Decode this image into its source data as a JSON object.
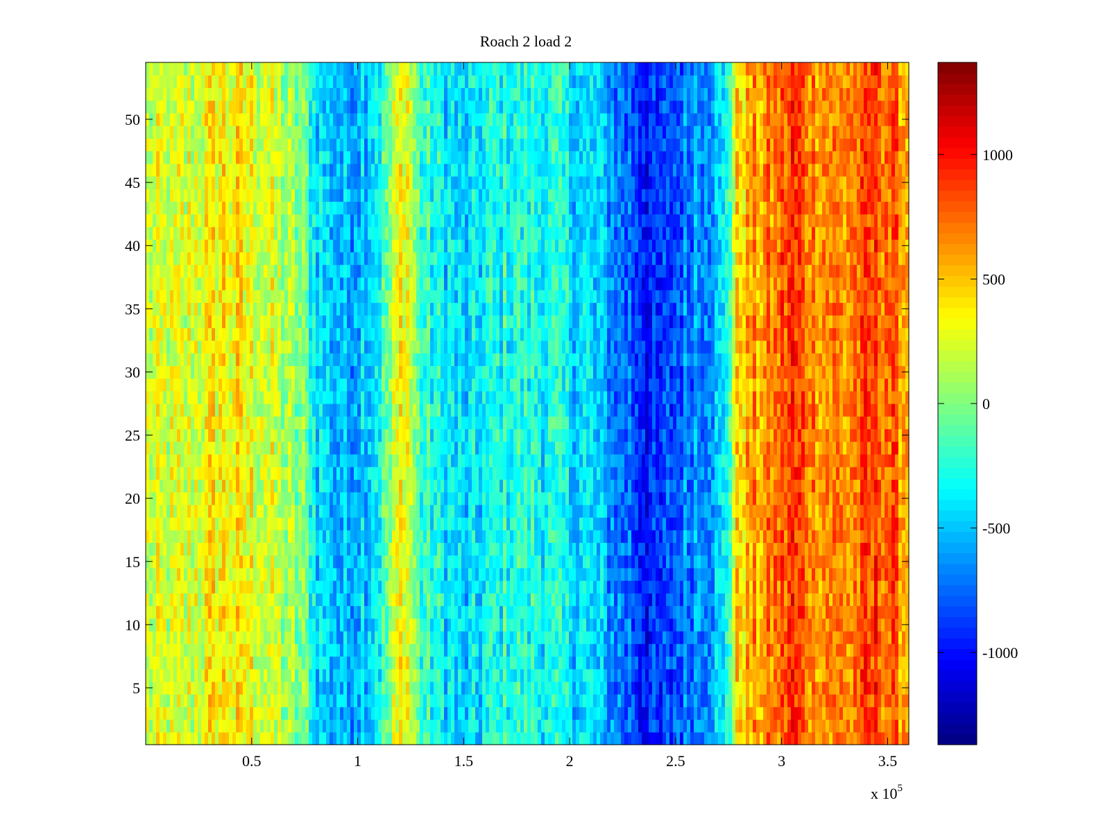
{
  "chart_data": {
    "type": "heatmap",
    "title": "Roach 2 load 2",
    "xlabel": "",
    "ylabel": "",
    "x_multiplier_label": "x 10",
    "x_multiplier_exponent": "5",
    "xlim": [
      0,
      3.6
    ],
    "ylim": [
      0.5,
      54.5
    ],
    "x_ticks": [
      0.5,
      1,
      1.5,
      2,
      2.5,
      3,
      3.5
    ],
    "x_tick_labels": [
      "0.5",
      "1",
      "1.5",
      "2",
      "2.5",
      "3",
      "3.5"
    ],
    "y_ticks": [
      5,
      10,
      15,
      20,
      25,
      30,
      35,
      40,
      45,
      50
    ],
    "y_tick_labels": [
      "5",
      "10",
      "15",
      "20",
      "25",
      "30",
      "35",
      "40",
      "45",
      "50"
    ],
    "rows": 54,
    "colormap": "jet",
    "clim": [
      -1370,
      1370
    ],
    "colorbar_ticks": [
      1000,
      500,
      0,
      -500,
      -1000
    ],
    "colorbar_tick_labels": [
      "1000",
      "500",
      "0",
      "-500",
      "-1000"
    ],
    "column_profile": {
      "x": [
        0.0,
        0.2,
        0.35,
        0.55,
        0.75,
        0.8,
        0.95,
        1.1,
        1.22,
        1.3,
        1.5,
        1.7,
        1.9,
        2.1,
        2.3,
        2.4,
        2.5,
        2.6,
        2.72,
        2.8,
        2.95,
        3.05,
        3.15,
        3.3,
        3.45,
        3.6
      ],
      "mean_value": [
        180,
        210,
        380,
        260,
        -50,
        -380,
        -560,
        -300,
        420,
        -200,
        -500,
        -250,
        -300,
        -450,
        -800,
        -1000,
        -800,
        -600,
        -500,
        500,
        650,
        900,
        700,
        650,
        850,
        600
      ]
    }
  }
}
